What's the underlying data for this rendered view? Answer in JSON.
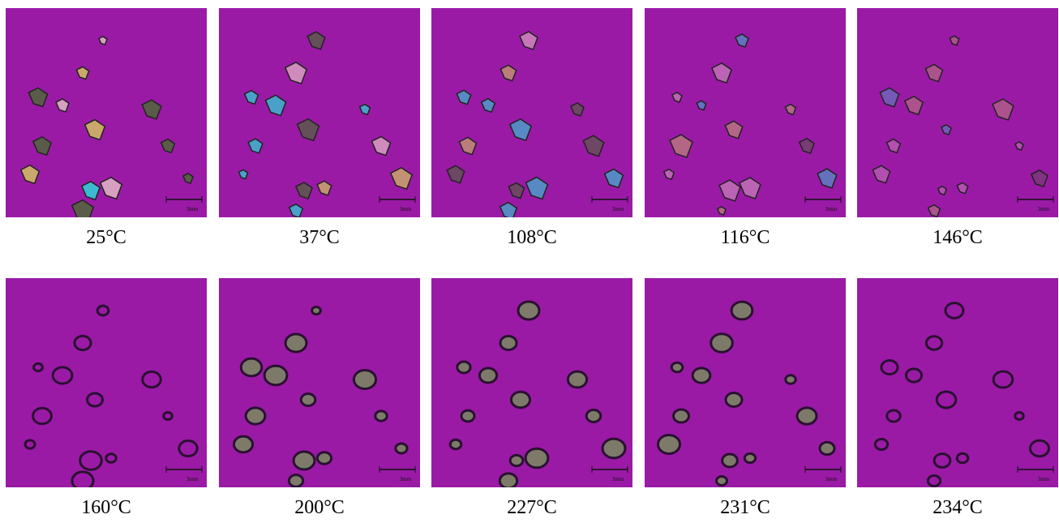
{
  "panels": [
    {
      "label": "25°C",
      "scale_label": "3mm"
    },
    {
      "label": "37°C",
      "scale_label": "3mm"
    },
    {
      "label": "108°C",
      "scale_label": "3mm"
    },
    {
      "label": "116°C",
      "scale_label": "3mm"
    },
    {
      "label": "146°C",
      "scale_label": "3mm"
    },
    {
      "label": "160°C",
      "scale_label": "3mm"
    },
    {
      "label": "200°C",
      "scale_label": "3mm"
    },
    {
      "label": "227°C",
      "scale_label": "3mm"
    },
    {
      "label": "231°C",
      "scale_label": "3mm"
    },
    {
      "label": "234°C",
      "scale_label": "3mm"
    }
  ]
}
